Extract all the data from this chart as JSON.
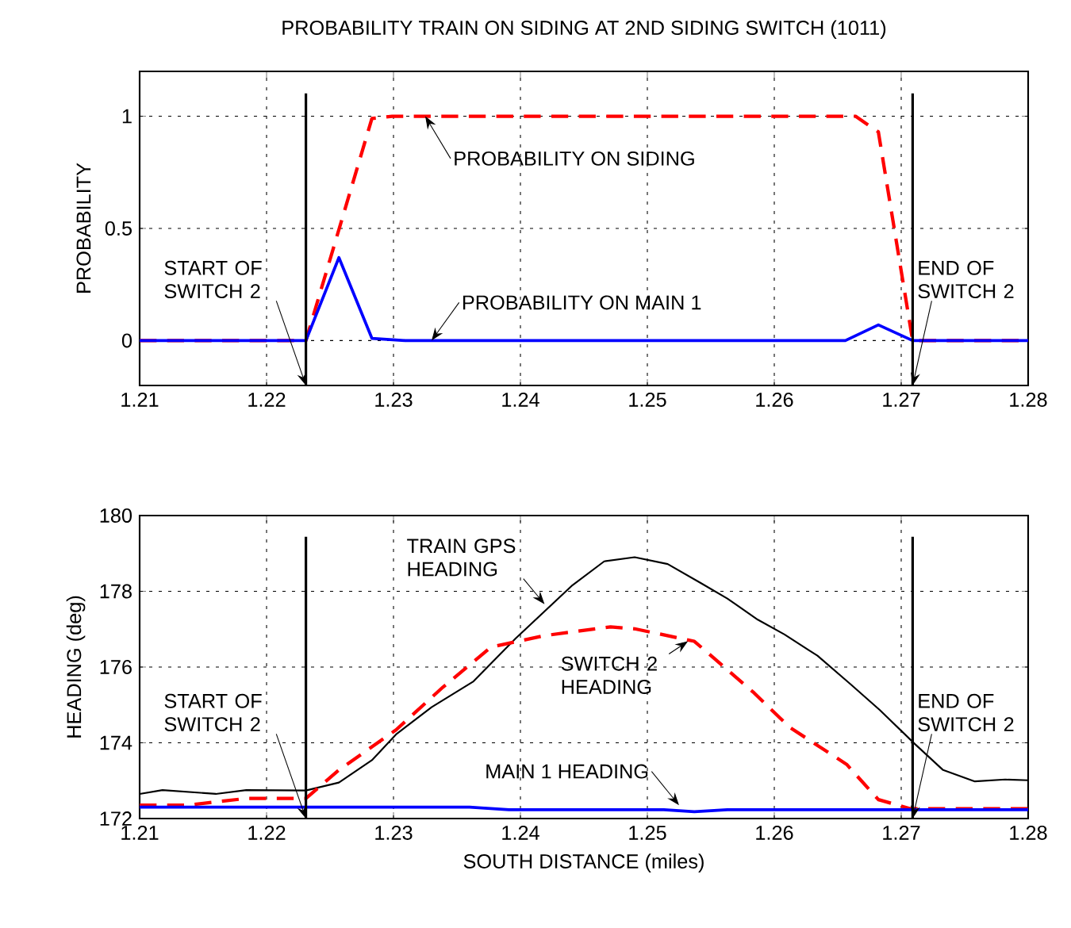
{
  "chart_data": [
    {
      "type": "line",
      "title": "PROBABILITY TRAIN ON SIDING AT 2ND SIDING SWITCH (1011)",
      "ylabel": "PROBABILITY",
      "xlim": [
        1.21,
        1.28
      ],
      "ylim": [
        -0.2,
        1.2
      ],
      "xticks": [
        1.21,
        1.22,
        1.23,
        1.24,
        1.25,
        1.26,
        1.27,
        1.28
      ],
      "yticks": [
        0,
        0.5,
        1
      ],
      "grid": true,
      "series": [
        {
          "color": "#ff0000",
          "line_style": "dashed",
          "x": [
            1.21,
            1.2231,
            1.2283,
            1.2299,
            1.2664,
            1.2682,
            1.2709,
            1.28
          ],
          "values": [
            0,
            0,
            0.99,
            1,
            1,
            0.93,
            0,
            0
          ]
        },
        {
          "color": "#0000ff",
          "line_style": "solid",
          "x": [
            1.21,
            1.2231,
            1.2257,
            1.2283,
            1.2309,
            1.2656,
            1.2682,
            1.2709,
            1.28
          ],
          "values": [
            0,
            0,
            0.37,
            0.01,
            0,
            0,
            0.07,
            0,
            0
          ]
        }
      ],
      "ref_lines": [
        {
          "axis": "x",
          "value": 1.2231,
          "label": "START OF SWITCH 2",
          "color": "#000000"
        },
        {
          "axis": "x",
          "value": 1.2709,
          "label": "END OF SWITCH 2",
          "color": "#000000"
        }
      ],
      "annotations": [
        {
          "text": "PROBABILITY ON SIDING",
          "x": 1.2325,
          "y": 1
        },
        {
          "text": "PROBABILITY ON MAIN 1",
          "x": 1.233,
          "y": 0
        }
      ]
    },
    {
      "type": "line",
      "xlabel": "SOUTH DISTANCE (miles)",
      "ylabel": "HEADING (deg)",
      "xlim": [
        1.21,
        1.28
      ],
      "ylim": [
        172,
        180
      ],
      "xticks": [
        1.21,
        1.22,
        1.23,
        1.24,
        1.25,
        1.26,
        1.27,
        1.28
      ],
      "yticks": [
        172,
        174,
        176,
        178,
        180
      ],
      "grid": true,
      "series": [
        {
          "color": "#000000",
          "line_style": "solid",
          "x": [
            1.21,
            1.2118,
            1.216,
            1.2184,
            1.2231,
            1.2257,
            1.2283,
            1.2302,
            1.233,
            1.2363,
            1.2396,
            1.2441,
            1.2466,
            1.249,
            1.2516,
            1.2542,
            1.2563,
            1.2587,
            1.2608,
            1.2634,
            1.266,
            1.2683,
            1.2711,
            1.2733,
            1.2758,
            1.2782,
            1.28
          ],
          "values": [
            172.65,
            172.75,
            172.65,
            172.75,
            172.74,
            172.95,
            173.54,
            174.22,
            174.94,
            175.62,
            176.75,
            178.16,
            178.79,
            178.9,
            178.72,
            178.22,
            177.81,
            177.25,
            176.86,
            176.3,
            175.55,
            174.87,
            173.96,
            173.28,
            172.98,
            173.03,
            173.01
          ]
        },
        {
          "color": "#ff0000",
          "line_style": "dashed",
          "x": [
            1.21,
            1.2137,
            1.2184,
            1.2231,
            1.2257,
            1.2302,
            1.2339,
            1.2377,
            1.2419,
            1.2471,
            1.249,
            1.2537,
            1.2584,
            1.2612,
            1.2657,
            1.2682,
            1.2707,
            1.28
          ],
          "values": [
            172.35,
            172.35,
            172.53,
            172.53,
            173.28,
            174.34,
            175.47,
            176.53,
            176.83,
            177.06,
            177.01,
            176.68,
            175.32,
            174.41,
            173.43,
            172.5,
            172.26,
            172.26
          ]
        },
        {
          "color": "#0000ff",
          "line_style": "solid",
          "x": [
            1.21,
            1.236,
            1.2391,
            1.2513,
            1.2537,
            1.2563,
            1.28
          ],
          "values": [
            172.3,
            172.3,
            172.23,
            172.23,
            172.18,
            172.23,
            172.23
          ]
        }
      ],
      "ref_lines": [
        {
          "axis": "x",
          "value": 1.2231,
          "label": "START OF SWITCH 2",
          "color": "#000000"
        },
        {
          "axis": "x",
          "value": 1.2709,
          "label": "END OF SWITCH 2",
          "color": "#000000"
        }
      ],
      "annotations": [
        {
          "text": "TRAIN GPS HEADING",
          "x": 1.2419,
          "y": 177.66
        },
        {
          "text": "SWITCH 2 HEADING",
          "x": 1.2532,
          "y": 176.68
        },
        {
          "text": "MAIN 1 HEADING",
          "x": 1.2525,
          "y": 172.35
        }
      ]
    }
  ]
}
